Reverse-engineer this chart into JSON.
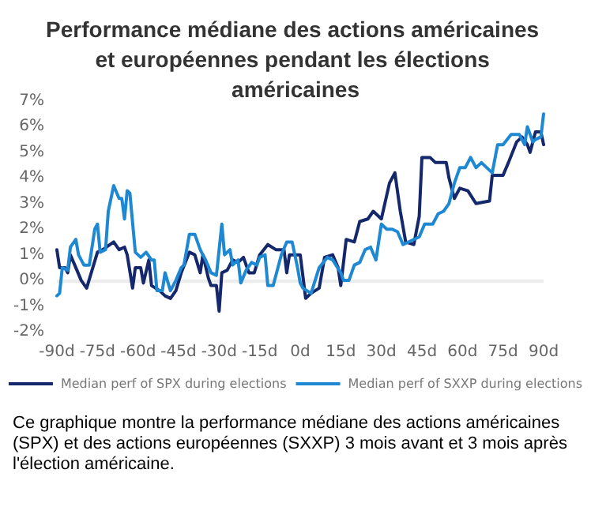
{
  "chart_data": {
    "type": "line",
    "title": "Performance médiane des actions américaines et européennes pendant les élections américaines",
    "annotations": [
      "Ce graphique montre la performance médiane des actions américaines (SPX) et des actions européennes (SXXP) 3 mois avant et 3 mois après l'élection américaine."
    ],
    "series": [
      {
        "name": "Median perf of SPX during elections",
        "color": "#14286b",
        "x": [
          -90,
          -89,
          -87,
          -86,
          -85,
          -83,
          -81,
          -79,
          -77,
          -75,
          -73,
          -69,
          -67,
          -65,
          -64,
          -62,
          -61,
          -59,
          -58,
          -56,
          -55,
          -52,
          -50,
          -48,
          -46,
          -44,
          -41,
          -39,
          -37,
          -36,
          -34,
          -33,
          -31,
          -30,
          -29,
          -27,
          -25,
          -23,
          -21,
          -19,
          -17,
          -15,
          -12,
          -9,
          -6,
          -5,
          -4,
          -1,
          0,
          2,
          4,
          7,
          9,
          12,
          14,
          15,
          17,
          20,
          22,
          25,
          27,
          30,
          33,
          35,
          37,
          39,
          42,
          44,
          45,
          48,
          50,
          54,
          55,
          57,
          59,
          62,
          65,
          70,
          71,
          75,
          77,
          80,
          82,
          84,
          85,
          87,
          89,
          90
        ],
        "values": [
          1.2,
          0.5,
          0.5,
          0.3,
          1.0,
          0.5,
          0.0,
          -0.3,
          0.4,
          1.1,
          1.2,
          1.5,
          1.2,
          1.3,
          1.0,
          -0.3,
          0.5,
          0.5,
          -0.1,
          0.8,
          -0.2,
          -0.4,
          -0.6,
          -0.7,
          -0.4,
          0.3,
          1.1,
          1.0,
          0.3,
          1.0,
          0.1,
          -0.2,
          -0.2,
          -1.2,
          0.3,
          0.4,
          0.8,
          0.7,
          0.9,
          0.3,
          0.3,
          1.0,
          1.4,
          1.2,
          1.2,
          0.3,
          1.0,
          1.0,
          1.0,
          -0.7,
          -0.5,
          -0.3,
          0.9,
          1.0,
          0.5,
          -0.2,
          1.6,
          1.5,
          2.3,
          2.4,
          2.7,
          2.4,
          3.8,
          4.2,
          2.7,
          1.5,
          1.4,
          2.5,
          4.8,
          4.8,
          4.6,
          4.6,
          4.0,
          3.2,
          3.6,
          3.5,
          3.0,
          3.1,
          4.1,
          4.1,
          4.6,
          5.4,
          5.6,
          5.3,
          5.0,
          5.8,
          5.8,
          5.3
        ]
      },
      {
        "name": "Median perf of SXXP during elections",
        "color": "#1f88d2",
        "x": [
          -90,
          -89,
          -88,
          -86,
          -85,
          -83,
          -82,
          -80,
          -78,
          -76,
          -75,
          -74,
          -72,
          -71,
          -70,
          -69,
          -67,
          -66,
          -65,
          -64,
          -63,
          -61,
          -59,
          -57,
          -55,
          -54,
          -53,
          -51,
          -50,
          -48,
          -46,
          -44,
          -43,
          -41,
          -39,
          -37,
          -35,
          -33,
          -31,
          -29,
          -28,
          -26,
          -25,
          -23,
          -22,
          -20,
          -18,
          -16,
          -15,
          -13,
          -12,
          -10,
          -8,
          -7,
          -5,
          -3,
          -1,
          0,
          1,
          4,
          7,
          10,
          12,
          15,
          16,
          18,
          20,
          22,
          24,
          26,
          28,
          30,
          32,
          34,
          36,
          38,
          40,
          42,
          44,
          46,
          49,
          51,
          53,
          55,
          57,
          59,
          61,
          63,
          65,
          67,
          69,
          71,
          73,
          75,
          78,
          81,
          83,
          84,
          86,
          87,
          89,
          90
        ],
        "values": [
          -0.6,
          -0.5,
          0.5,
          0.4,
          1.3,
          1.6,
          1.0,
          0.6,
          0.6,
          2.0,
          2.2,
          1.1,
          1.2,
          2.7,
          3.2,
          3.7,
          3.2,
          3.2,
          2.4,
          3.5,
          3.4,
          1.1,
          0.9,
          1.1,
          0.8,
          0.8,
          -0.4,
          -0.4,
          0.3,
          -0.4,
          0.0,
          0.5,
          0.6,
          1.8,
          1.8,
          1.2,
          0.8,
          0.3,
          0.2,
          2.2,
          1.0,
          1.2,
          0.6,
          0.8,
          -0.1,
          0.4,
          0.7,
          0.6,
          0.9,
          1.0,
          -0.2,
          -0.2,
          0.6,
          1.0,
          1.5,
          1.5,
          0.5,
          -0.1,
          -0.3,
          -0.5,
          0.5,
          0.9,
          0.8,
          0.3,
          0.0,
          0.0,
          0.6,
          0.7,
          1.2,
          1.3,
          0.8,
          2.2,
          2.0,
          2.0,
          1.9,
          1.4,
          1.5,
          1.6,
          1.7,
          2.2,
          2.2,
          2.6,
          2.7,
          3.0,
          3.8,
          4.4,
          4.4,
          4.8,
          4.4,
          4.6,
          4.4,
          4.2,
          5.3,
          5.3,
          5.7,
          5.7,
          5.3,
          6.0,
          5.4,
          5.5,
          5.6,
          6.5
        ]
      }
    ],
    "xlim": [
      -90,
      90
    ],
    "xticks": [
      {
        "value": -90,
        "label": "-90d"
      },
      {
        "value": -75,
        "label": "-75d"
      },
      {
        "value": -60,
        "label": "-60d"
      },
      {
        "value": -45,
        "label": "-45d"
      },
      {
        "value": -30,
        "label": "-30d"
      },
      {
        "value": -15,
        "label": "-15d"
      },
      {
        "value": 0,
        "label": "0d"
      },
      {
        "value": 15,
        "label": "15d"
      },
      {
        "value": 30,
        "label": "30d"
      },
      {
        "value": 45,
        "label": "45d"
      },
      {
        "value": 60,
        "label": "60d"
      },
      {
        "value": 75,
        "label": "75d"
      },
      {
        "value": 90,
        "label": "90d"
      }
    ],
    "ylim": [
      -2,
      7
    ],
    "yticks": [
      {
        "value": -2,
        "label": "-2%"
      },
      {
        "value": -1,
        "label": "-1%"
      },
      {
        "value": 0,
        "label": "0%"
      },
      {
        "value": 1,
        "label": "1%"
      },
      {
        "value": 2,
        "label": "2%"
      },
      {
        "value": 3,
        "label": "3%"
      },
      {
        "value": 4,
        "label": "4%"
      },
      {
        "value": 5,
        "label": "5%"
      },
      {
        "value": 6,
        "label": "6%"
      },
      {
        "value": 7,
        "label": "7%"
      }
    ],
    "ref_lines": [
      {
        "axis": "y",
        "value": 0,
        "color": "#ececec"
      }
    ],
    "grid": false,
    "legend": "bottom",
    "marker": "none",
    "line_style": "solid"
  }
}
